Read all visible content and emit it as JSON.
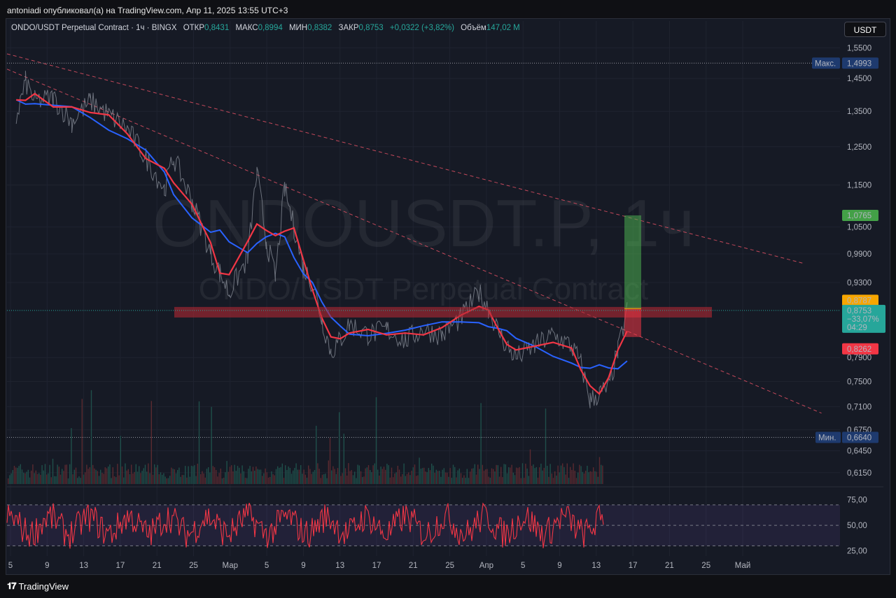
{
  "header": {
    "published": "antoniadi опубликовал(а) на TradingView.com, Апр 11, 2025 13:55 UTC+3"
  },
  "legend": {
    "symbol": "ONDO/USDT Perpetual Contract · 1ч · BINGX",
    "open_label": "ОТКР",
    "open": "0,8431",
    "high_label": "МАКС",
    "high": "0,8994",
    "low_label": "МИН",
    "low": "0,8382",
    "close_label": "ЗАКР",
    "close": "0,8753",
    "change": "+0,0322 (+3,82%)",
    "volume_label": "Объём",
    "volume": "147,02 M"
  },
  "currency_button": "USDT",
  "watermark": {
    "line1": "ONDOUSDT.P, 1ч",
    "line2": "ONDO/USDT Perpetual Contract"
  },
  "price_axis": {
    "ticks": [
      "1,5500",
      "1,4500",
      "1,3500",
      "1,2500",
      "1,1500",
      "1,0500",
      "0,9900",
      "0,9300",
      "0,7900",
      "0,7500",
      "0,7100",
      "0,6750",
      "0,6450",
      "0,6150"
    ],
    "max_label": "Макс.",
    "max_value": "1,4993",
    "min_label": "Мин.",
    "min_value": "0,6640",
    "target_value": "1,0765",
    "entry_value": "0,8787",
    "current_value": "0,8753",
    "current_change": "−33,07%",
    "current_timer": "04:29",
    "stop_value": "0,8262"
  },
  "rsi_axis": {
    "ticks": [
      "75,00",
      "50,00",
      "25,00"
    ]
  },
  "time_axis": {
    "ticks": [
      "5",
      "9",
      "13",
      "17",
      "21",
      "25",
      "Мар",
      "5",
      "9",
      "13",
      "17",
      "21",
      "25",
      "Апр",
      "5",
      "9",
      "13",
      "17",
      "21",
      "25",
      "Май"
    ]
  },
  "colors": {
    "background": "#161a25",
    "ma_fast": "#f23645",
    "ma_slow": "#2962ff",
    "up": "#26a69a",
    "down": "#ef5350",
    "target_zone": "#4caf50",
    "stop_zone": "#f23645",
    "resistance_zone": "#b22833",
    "rsi_line": "#f23645",
    "rsi_band": "#7e57c2"
  },
  "chart_data": {
    "type": "line",
    "title": "ONDO/USDT Perpetual Contract · 1ч · BINGX",
    "ylim": [
      0.6,
      1.57
    ],
    "price_scale": "log",
    "x_range": [
      "2025-02-03",
      "2025-05-04"
    ],
    "series": [
      {
        "values": [
          [
            "2025-02-04",
            1.33
          ],
          [
            "2025-02-05",
            1.44
          ],
          [
            "2025-02-06",
            1.38
          ],
          [
            "2025-02-08",
            1.39
          ],
          [
            "2025-02-10",
            1.32
          ],
          [
            "2025-02-12",
            1.38
          ],
          [
            "2025-02-14",
            1.34
          ],
          [
            "2025-02-16",
            1.3
          ],
          [
            "2025-02-18",
            1.22
          ],
          [
            "2025-02-20",
            1.14
          ],
          [
            "2025-02-21",
            1.22
          ],
          [
            "2025-02-23",
            1.11
          ],
          [
            "2025-02-25",
            0.99
          ],
          [
            "2025-02-26",
            0.95
          ],
          [
            "2025-02-27",
            0.91
          ],
          [
            "2025-03-01",
            0.98
          ],
          [
            "2025-03-02",
            1.18
          ],
          [
            "2025-03-03",
            1.02
          ],
          [
            "2025-03-04",
            0.94
          ],
          [
            "2025-03-05",
            1.14
          ],
          [
            "2025-03-06",
            1.05
          ],
          [
            "2025-03-07",
            0.96
          ],
          [
            "2025-03-08",
            0.93
          ],
          [
            "2025-03-09",
            0.86
          ],
          [
            "2025-03-10",
            0.8
          ],
          [
            "2025-03-11",
            0.82
          ],
          [
            "2025-03-12",
            0.85
          ],
          [
            "2025-03-14",
            0.83
          ],
          [
            "2025-03-16",
            0.84
          ],
          [
            "2025-03-18",
            0.82
          ],
          [
            "2025-03-20",
            0.84
          ],
          [
            "2025-03-22",
            0.83
          ],
          [
            "2025-03-24",
            0.86
          ],
          [
            "2025-03-26",
            0.91
          ],
          [
            "2025-03-27",
            0.88
          ],
          [
            "2025-03-28",
            0.84
          ],
          [
            "2025-03-29",
            0.81
          ],
          [
            "2025-03-30",
            0.79
          ],
          [
            "2025-04-01",
            0.81
          ],
          [
            "2025-04-03",
            0.83
          ],
          [
            "2025-04-05",
            0.81
          ],
          [
            "2025-04-06",
            0.78
          ],
          [
            "2025-04-07",
            0.72
          ],
          [
            "2025-04-08",
            0.73
          ],
          [
            "2025-04-09",
            0.74
          ],
          [
            "2025-04-10",
            0.8
          ],
          [
            "2025-04-11",
            0.8753
          ]
        ]
      }
    ],
    "annotations": {
      "max": 1.4993,
      "min": 0.664,
      "target": 1.0765,
      "entry": 0.8787,
      "stop": 0.8262,
      "resistance_zone": [
        0.862,
        0.882
      ]
    },
    "rsi": {
      "levels": [
        70,
        50,
        30
      ],
      "ylim": [
        20,
        85
      ]
    }
  }
}
